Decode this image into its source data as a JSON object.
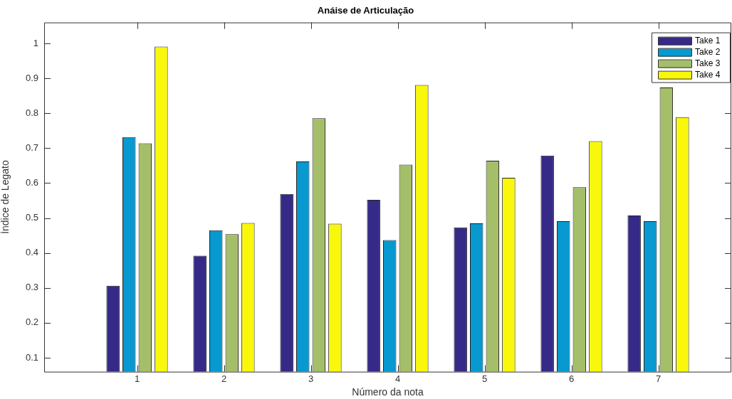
{
  "chart_data": {
    "type": "bar",
    "title": "Anáise de Articulação",
    "xlabel": "Número da nota",
    "ylabel": "Índice de Legato",
    "x": [
      1,
      2,
      3,
      4,
      5,
      6,
      7
    ],
    "xlim": [
      -0.07,
      7.84
    ],
    "xticks": [
      1,
      2,
      3,
      4,
      5,
      6,
      7
    ],
    "ylim": [
      0.06,
      1.06
    ],
    "yticks": [
      0.1,
      0.2,
      0.3,
      0.4,
      0.5,
      0.6,
      0.7,
      0.8,
      0.9,
      1
    ],
    "series": [
      {
        "name": "Take 1",
        "color": "#352a87",
        "values": [
          0.306,
          0.392,
          0.569,
          0.552,
          0.473,
          0.679,
          0.507
        ]
      },
      {
        "name": "Take 2",
        "color": "#0799cf",
        "values": [
          0.732,
          0.465,
          0.662,
          0.437,
          0.485,
          0.491,
          0.491
        ]
      },
      {
        "name": "Take 3",
        "color": "#a5be69",
        "values": [
          0.714,
          0.454,
          0.786,
          0.653,
          0.664,
          0.588,
          0.874
        ]
      },
      {
        "name": "Take 4",
        "color": "#f9f70c",
        "values": [
          0.991,
          0.486,
          0.484,
          0.881,
          0.615,
          0.72,
          0.789
        ]
      }
    ],
    "legend": "top right",
    "grid": false
  }
}
